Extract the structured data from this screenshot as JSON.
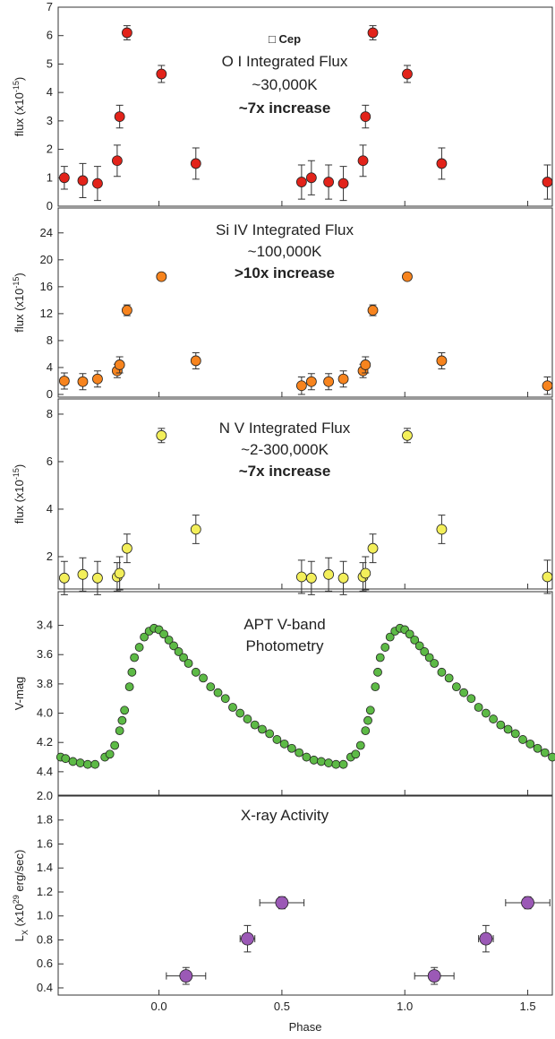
{
  "chart_data": [
    {
      "type": "scatter",
      "title": "□ Cep",
      "annotations": [
        {
          "text": "O I Integrated Flux"
        },
        {
          "text": "~30,000K"
        },
        {
          "text": "~7x increase",
          "bold": true
        }
      ],
      "ylabel": [
        {
          "text": "flux (x10"
        },
        {
          "text": "-15",
          "script": "super"
        },
        {
          "text": ")"
        }
      ],
      "color": "#e2231a",
      "xlim": [
        -0.41,
        1.6
      ],
      "ylim": [
        0,
        7
      ],
      "yticks": [
        0,
        1,
        2,
        3,
        4,
        5,
        6,
        7
      ],
      "x": [
        -0.385,
        -0.31,
        -0.25,
        -0.17,
        -0.16,
        -0.13,
        0.01,
        0.15,
        0.58,
        0.62,
        0.69,
        0.75,
        0.83,
        0.84,
        0.87,
        1.01,
        1.15,
        1.58
      ],
      "values": [
        1.0,
        0.9,
        0.8,
        1.6,
        3.15,
        6.1,
        4.65,
        1.5,
        0.85,
        1.0,
        0.85,
        0.8,
        1.6,
        3.15,
        6.1,
        4.65,
        1.5,
        0.85
      ],
      "errors": [
        0.4,
        0.6,
        0.6,
        0.55,
        0.4,
        0.25,
        0.3,
        0.55,
        0.6,
        0.6,
        0.6,
        0.6,
        0.55,
        0.4,
        0.25,
        0.3,
        0.55,
        0.6
      ]
    },
    {
      "type": "scatter",
      "annotations": [
        {
          "text": "Si IV Integrated Flux"
        },
        {
          "text": "~100,000K"
        },
        {
          "text": ">10x increase",
          "bold": true
        }
      ],
      "ylabel": [
        {
          "text": "flux (x10"
        },
        {
          "text": "-15",
          "script": "super"
        },
        {
          "text": ")"
        }
      ],
      "color": "#f7841e",
      "xlim": [
        -0.41,
        1.6
      ],
      "ylim": [
        -0.4,
        27.7
      ],
      "yticks": [
        0,
        4,
        8,
        12,
        16,
        20,
        24
      ],
      "x": [
        -0.385,
        -0.31,
        -0.25,
        -0.17,
        -0.16,
        -0.13,
        0.01,
        0.15,
        0.58,
        0.62,
        0.69,
        0.75,
        0.83,
        0.84,
        0.87,
        1.01,
        1.15,
        1.58
      ],
      "values": [
        2.0,
        1.9,
        2.3,
        3.5,
        4.4,
        12.5,
        17.5,
        5.0,
        1.3,
        1.9,
        1.9,
        2.3,
        3.5,
        4.4,
        12.5,
        17.5,
        5.0,
        1.3
      ],
      "errors": [
        1.2,
        1.2,
        1.2,
        1.0,
        1.2,
        0.8,
        0.4,
        1.2,
        1.3,
        1.2,
        1.2,
        1.2,
        1.0,
        1.2,
        0.8,
        0.4,
        1.2,
        1.3
      ]
    },
    {
      "type": "scatter",
      "annotations": [
        {
          "text": "N V Integrated Flux"
        },
        {
          "text": "~2-300,000K"
        },
        {
          "text": "~7x increase",
          "bold": true
        }
      ],
      "ylabel": [
        {
          "text": "flux (x10"
        },
        {
          "text": "-15",
          "script": "super"
        },
        {
          "text": ")"
        }
      ],
      "color": "#f3ef5a",
      "xlim": [
        -0.41,
        1.6
      ],
      "ylim": [
        0.64,
        8.64
      ],
      "yticks": [
        2,
        4,
        6,
        8
      ],
      "x": [
        -0.385,
        -0.31,
        -0.25,
        -0.17,
        -0.16,
        -0.13,
        0.01,
        0.15,
        0.58,
        0.62,
        0.69,
        0.75,
        0.83,
        0.84,
        0.87,
        1.01,
        1.15,
        1.58
      ],
      "values": [
        1.1,
        1.25,
        1.1,
        1.15,
        1.3,
        2.35,
        7.1,
        3.15,
        1.15,
        1.1,
        1.25,
        1.1,
        1.15,
        1.3,
        2.35,
        7.1,
        3.15,
        1.15
      ],
      "errors": [
        0.7,
        0.7,
        0.7,
        0.6,
        0.7,
        0.6,
        0.3,
        0.6,
        0.7,
        0.7,
        0.7,
        0.7,
        0.6,
        0.7,
        0.6,
        0.3,
        0.6,
        0.7
      ]
    },
    {
      "type": "scatter",
      "annotations": [
        {
          "text": "APT V-band"
        },
        {
          "text": "Photometry"
        }
      ],
      "ylabel": [
        {
          "text": "V-mag"
        }
      ],
      "color": "#5dba46",
      "xlim": [
        -0.41,
        1.6
      ],
      "ylim": [
        4.56,
        3.17
      ],
      "yticks": [
        3.4,
        3.6,
        3.8,
        {
          "value": 4,
          "label": "4.0"
        },
        4.2,
        4.4
      ],
      "x": [
        -0.4,
        -0.38,
        -0.35,
        -0.32,
        -0.29,
        -0.26,
        -0.22,
        -0.2,
        -0.18,
        -0.16,
        -0.15,
        -0.14,
        -0.12,
        -0.11,
        -0.1,
        -0.08,
        -0.06,
        -0.04,
        -0.02,
        0.0,
        0.02,
        0.04,
        0.06,
        0.08,
        0.1,
        0.12,
        0.15,
        0.18,
        0.21,
        0.24,
        0.27,
        0.3,
        0.33,
        0.36,
        0.39,
        0.42,
        0.45,
        0.48,
        0.51,
        0.54,
        0.57,
        0.6,
        0.63,
        0.66,
        0.69,
        0.72,
        0.75,
        0.78,
        0.8,
        0.82,
        0.84,
        0.85,
        0.86,
        0.88,
        0.89,
        0.9,
        0.92,
        0.94,
        0.96,
        0.98,
        1.0,
        1.02,
        1.04,
        1.06,
        1.08,
        1.1,
        1.12,
        1.15,
        1.18,
        1.21,
        1.24,
        1.27,
        1.3,
        1.33,
        1.36,
        1.39,
        1.42,
        1.45,
        1.48,
        1.51,
        1.54,
        1.57,
        1.6
      ],
      "values": [
        4.3,
        4.31,
        4.33,
        4.34,
        4.35,
        4.35,
        4.3,
        4.28,
        4.22,
        4.12,
        4.05,
        3.98,
        3.82,
        3.72,
        3.62,
        3.55,
        3.48,
        3.44,
        3.42,
        3.43,
        3.46,
        3.5,
        3.54,
        3.58,
        3.62,
        3.66,
        3.72,
        3.76,
        3.82,
        3.86,
        3.9,
        3.96,
        4.0,
        4.04,
        4.08,
        4.11,
        4.14,
        4.18,
        4.21,
        4.24,
        4.27,
        4.3,
        4.32,
        4.33,
        4.34,
        4.35,
        4.35,
        4.3,
        4.28,
        4.22,
        4.12,
        4.05,
        3.98,
        3.82,
        3.72,
        3.62,
        3.55,
        3.48,
        3.44,
        3.42,
        3.43,
        3.46,
        3.5,
        3.54,
        3.58,
        3.62,
        3.66,
        3.72,
        3.76,
        3.82,
        3.86,
        3.9,
        3.96,
        4.0,
        4.04,
        4.08,
        4.11,
        4.14,
        4.18,
        4.21,
        4.24,
        4.27,
        4.3
      ]
    },
    {
      "type": "scatter",
      "annotations": [
        {
          "text": "X-ray Activity"
        }
      ],
      "ylabel": [
        {
          "text": "L"
        },
        {
          "text": "X",
          "script": "sub"
        },
        {
          "text": " (x10"
        },
        {
          "text": "29",
          "script": "super"
        },
        {
          "text": " erg/sec)"
        }
      ],
      "xlabel": "Phase",
      "color": "#9b59b6",
      "xlim": [
        -0.41,
        1.6
      ],
      "ylim": [
        0.34,
        2.0
      ],
      "xticks": [
        {
          "value": 0,
          "label": "0.0"
        },
        0.5,
        {
          "value": 1,
          "label": "1.0"
        },
        1.5
      ],
      "yticks": [
        0.4,
        0.6,
        0.8,
        {
          "value": 1,
          "label": "1.0"
        },
        1.2,
        1.4,
        1.6,
        1.8,
        {
          "value": 2,
          "label": "2.0"
        }
      ],
      "x": [
        0.11,
        0.36,
        0.5,
        1.12,
        1.33,
        1.5
      ],
      "values": [
        0.5,
        0.81,
        1.11,
        0.5,
        0.81,
        1.11
      ],
      "errors": [
        0.07,
        0.11,
        0.05,
        0.07,
        0.11,
        0.05
      ],
      "x_errors": [
        0.08,
        0.03,
        0.09,
        0.08,
        0.03,
        0.09
      ]
    }
  ]
}
